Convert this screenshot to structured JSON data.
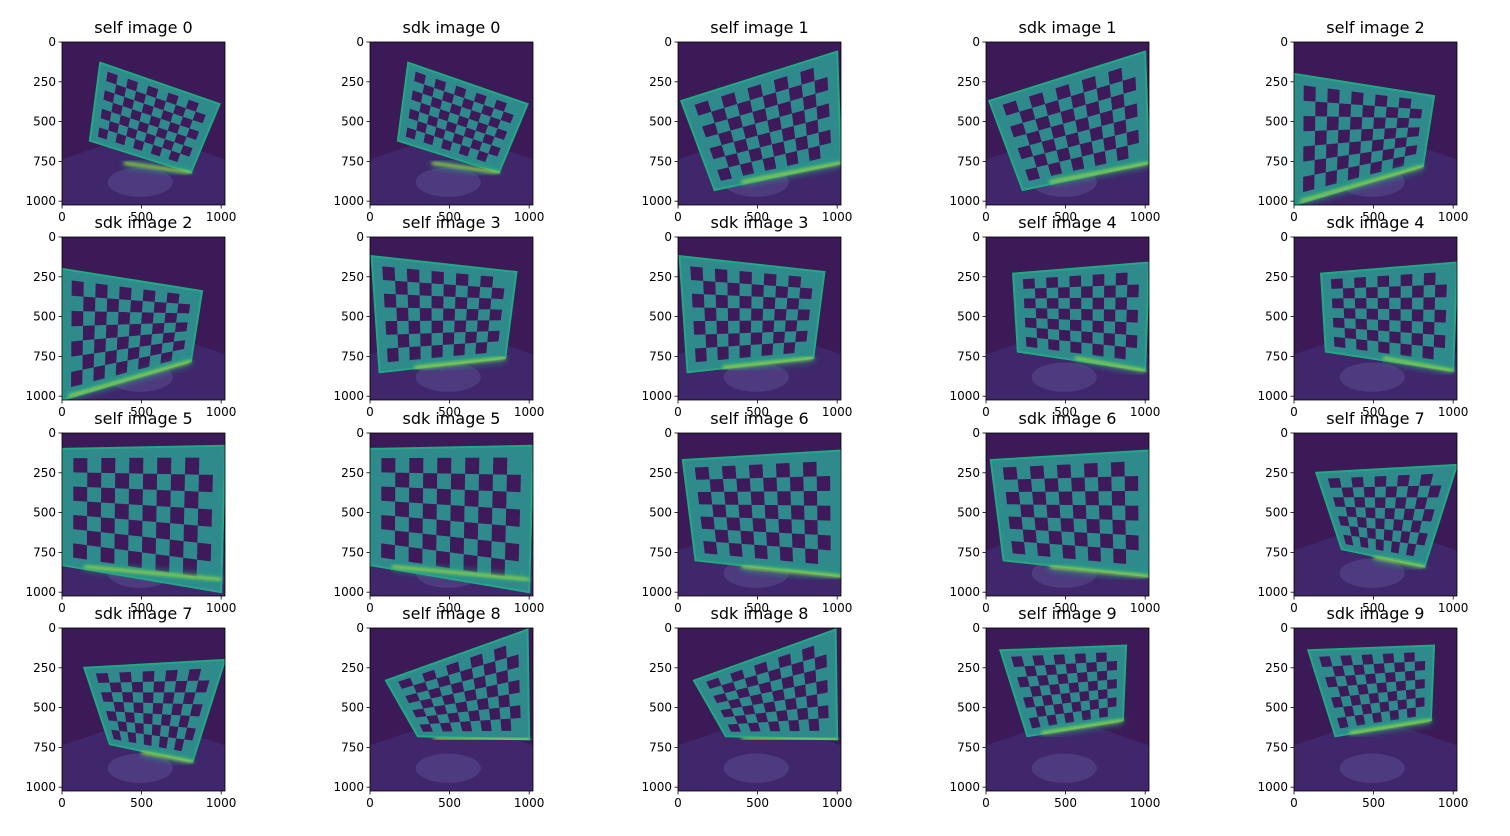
{
  "figure": {
    "background": "#ffffff",
    "colormap": "viridis",
    "colors": {
      "background_dark": "#3b1a57",
      "floor": "#46327a",
      "board_light": "#2f8a8c",
      "board_dark": "#3e1a5b",
      "glare": "#b6e32e",
      "edge_glow": "#23a884"
    }
  },
  "chart_data": {
    "type": "heatmap",
    "layout": {
      "rows": 4,
      "cols": 5
    },
    "axes": {
      "x_ticks": [
        0,
        500,
        1000
      ],
      "y_ticks": [
        0,
        250,
        500,
        750,
        1000
      ],
      "xlim": [
        0,
        1024
      ],
      "ylim": [
        1024,
        0
      ]
    },
    "panels": [
      {
        "title": "self image 0",
        "board": {
          "corners": [
            [
              240,
              130
            ],
            [
              990,
              390
            ],
            [
              810,
              820
            ],
            [
              175,
              620
            ]
          ],
          "rows": 7,
          "cols": 10
        },
        "glare": [
          [
            390,
            760
          ],
          [
            810,
            820
          ]
        ]
      },
      {
        "title": "sdk image 0",
        "board": {
          "corners": [
            [
              240,
              130
            ],
            [
              990,
              390
            ],
            [
              810,
              820
            ],
            [
              175,
              620
            ]
          ],
          "rows": 7,
          "cols": 10
        },
        "glare": [
          [
            390,
            760
          ],
          [
            810,
            820
          ]
        ]
      },
      {
        "title": "self image 1",
        "board": {
          "corners": [
            [
              20,
              370
            ],
            [
              1000,
              60
            ],
            [
              1024,
              760
            ],
            [
              230,
              930
            ]
          ],
          "rows": 7,
          "cols": 10
        },
        "glare": [
          [
            400,
            880
          ],
          [
            1024,
            760
          ]
        ]
      },
      {
        "title": "sdk image 1",
        "board": {
          "corners": [
            [
              20,
              370
            ],
            [
              1000,
              60
            ],
            [
              1024,
              760
            ],
            [
              230,
              930
            ]
          ],
          "rows": 7,
          "cols": 10
        },
        "glare": [
          [
            400,
            880
          ],
          [
            1024,
            760
          ]
        ]
      },
      {
        "title": "self image 2",
        "board": {
          "corners": [
            [
              0,
              200
            ],
            [
              880,
              340
            ],
            [
              810,
              780
            ],
            [
              0,
              1024
            ]
          ],
          "rows": 7,
          "cols": 10
        },
        "glare": [
          [
            40,
            1000
          ],
          [
            810,
            780
          ]
        ]
      },
      {
        "title": "sdk image 2",
        "board": {
          "corners": [
            [
              0,
              200
            ],
            [
              880,
              340
            ],
            [
              810,
              780
            ],
            [
              0,
              1024
            ]
          ],
          "rows": 7,
          "cols": 10
        },
        "glare": [
          [
            40,
            1000
          ],
          [
            810,
            780
          ]
        ]
      },
      {
        "title": "self image 3",
        "board": {
          "corners": [
            [
              10,
              120
            ],
            [
              920,
              220
            ],
            [
              850,
              760
            ],
            [
              60,
              850
            ]
          ],
          "rows": 7,
          "cols": 10
        },
        "glare": [
          [
            280,
            820
          ],
          [
            850,
            760
          ]
        ]
      },
      {
        "title": "sdk image 3",
        "board": {
          "corners": [
            [
              10,
              120
            ],
            [
              920,
              220
            ],
            [
              850,
              760
            ],
            [
              60,
              850
            ]
          ],
          "rows": 7,
          "cols": 10
        },
        "glare": [
          [
            280,
            820
          ],
          [
            850,
            760
          ]
        ]
      },
      {
        "title": "self image 4",
        "board": {
          "corners": [
            [
              170,
              230
            ],
            [
              1024,
              160
            ],
            [
              1000,
              840
            ],
            [
              200,
              720
            ]
          ],
          "rows": 7,
          "cols": 10
        },
        "glare": [
          [
            560,
            760
          ],
          [
            1000,
            840
          ]
        ]
      },
      {
        "title": "sdk image 4",
        "board": {
          "corners": [
            [
              170,
              230
            ],
            [
              1024,
              160
            ],
            [
              1000,
              840
            ],
            [
              200,
              720
            ]
          ],
          "rows": 7,
          "cols": 10
        },
        "glare": [
          [
            560,
            760
          ],
          [
            1000,
            840
          ]
        ]
      },
      {
        "title": "self image 5",
        "board": {
          "corners": [
            [
              0,
              100
            ],
            [
              1024,
              80
            ],
            [
              1000,
              1000
            ],
            [
              0,
              830
            ]
          ],
          "rows": 7,
          "cols": 10
        },
        "glare": [
          [
            140,
            840
          ],
          [
            1000,
            920
          ]
        ]
      },
      {
        "title": "sdk image 5",
        "board": {
          "corners": [
            [
              0,
              100
            ],
            [
              1024,
              80
            ],
            [
              1000,
              1000
            ],
            [
              0,
              830
            ]
          ],
          "rows": 7,
          "cols": 10
        },
        "glare": [
          [
            140,
            840
          ],
          [
            1000,
            920
          ]
        ]
      },
      {
        "title": "self image 6",
        "board": {
          "corners": [
            [
              30,
              170
            ],
            [
              1024,
              110
            ],
            [
              1024,
              900
            ],
            [
              110,
              800
            ]
          ],
          "rows": 7,
          "cols": 10
        },
        "glare": [
          [
            400,
            840
          ],
          [
            1024,
            900
          ]
        ]
      },
      {
        "title": "sdk image 6",
        "board": {
          "corners": [
            [
              30,
              170
            ],
            [
              1024,
              110
            ],
            [
              1024,
              900
            ],
            [
              110,
              800
            ]
          ],
          "rows": 7,
          "cols": 10
        },
        "glare": [
          [
            400,
            840
          ],
          [
            1024,
            900
          ]
        ]
      },
      {
        "title": "self image 7",
        "board": {
          "corners": [
            [
              140,
              250
            ],
            [
              1024,
              200
            ],
            [
              820,
              840
            ],
            [
              300,
              730
            ]
          ],
          "rows": 7,
          "cols": 10
        },
        "glare": [
          [
            500,
            780
          ],
          [
            820,
            840
          ]
        ]
      },
      {
        "title": "sdk image 7",
        "board": {
          "corners": [
            [
              140,
              250
            ],
            [
              1024,
              200
            ],
            [
              820,
              840
            ],
            [
              300,
              730
            ]
          ],
          "rows": 7,
          "cols": 10
        },
        "glare": [
          [
            500,
            780
          ],
          [
            820,
            840
          ]
        ]
      },
      {
        "title": "self image 8",
        "board": {
          "corners": [
            [
              100,
              330
            ],
            [
              990,
              10
            ],
            [
              1000,
              700
            ],
            [
              300,
              680
            ]
          ],
          "rows": 7,
          "cols": 10
        },
        "glare": [
          [
            400,
            690
          ],
          [
            1000,
            700
          ]
        ]
      },
      {
        "title": "sdk image 8",
        "board": {
          "corners": [
            [
              100,
              330
            ],
            [
              990,
              10
            ],
            [
              1000,
              700
            ],
            [
              300,
              680
            ]
          ],
          "rows": 7,
          "cols": 10
        },
        "glare": [
          [
            400,
            690
          ],
          [
            1000,
            700
          ]
        ]
      },
      {
        "title": "self image 9",
        "board": {
          "corners": [
            [
              90,
              140
            ],
            [
              880,
              110
            ],
            [
              860,
              580
            ],
            [
              260,
              680
            ]
          ],
          "rows": 7,
          "cols": 10
        },
        "glare": [
          [
            350,
            660
          ],
          [
            860,
            580
          ]
        ]
      },
      {
        "title": "sdk image 9",
        "board": {
          "corners": [
            [
              90,
              140
            ],
            [
              880,
              110
            ],
            [
              860,
              580
            ],
            [
              260,
              680
            ]
          ],
          "rows": 7,
          "cols": 10
        },
        "glare": [
          [
            350,
            660
          ],
          [
            860,
            580
          ]
        ]
      }
    ]
  }
}
